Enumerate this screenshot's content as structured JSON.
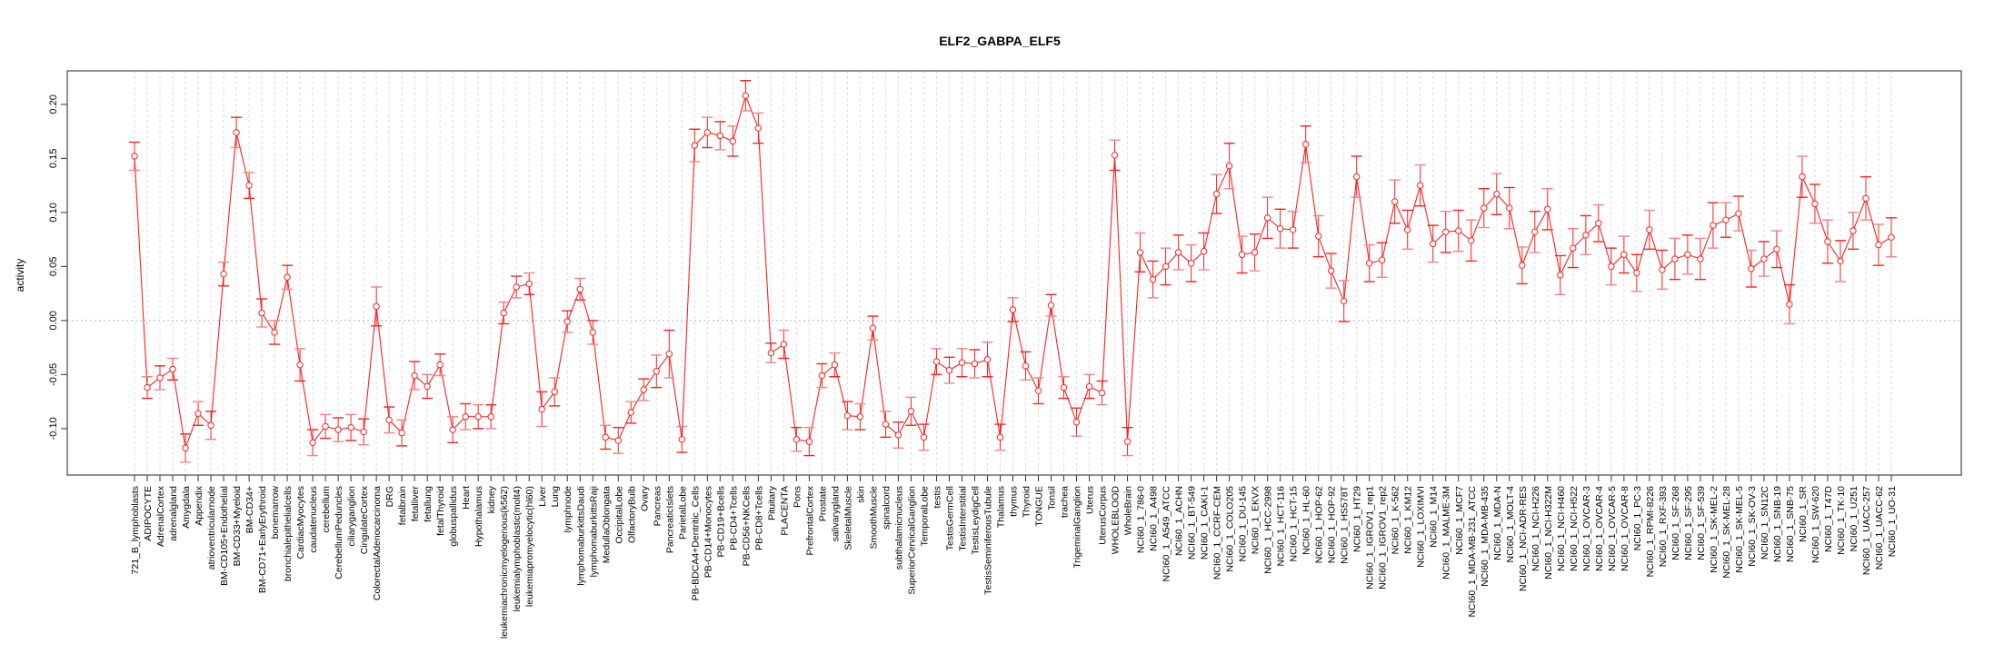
{
  "chart_data": {
    "type": "line",
    "title": "ELF2_GABPA_ELF5",
    "xlabel": "",
    "ylabel": "activity",
    "ylim": [
      -0.143,
      0.231
    ],
    "yticks": [
      -0.1,
      -0.05,
      0.0,
      0.05,
      0.1,
      0.15,
      0.2
    ],
    "ytick_labels": [
      "-0.10",
      "-0.05",
      "0.00",
      "0.05",
      "0.10",
      "0.15",
      "0.20"
    ],
    "reference_line": 0.0,
    "grid": "vertical dashed per category",
    "legend": "none",
    "color": "#ff2020",
    "categories": [
      "721_B_lymphoblasts",
      "ADIPOCYTE",
      "AdrenalCortex",
      "adrenalgland",
      "Amygdala",
      "Appendix",
      "atrioventricularnode",
      "BM-CD105+Endothelial",
      "BM-CD33+Myeloid",
      "BM-CD34+",
      "BM-CD71+EarlyErythroid",
      "bonemarrow",
      "bronchialepithelialcells",
      "CardiacMyocytes",
      "caudatenucleus",
      "cerebellum",
      "CerebellumPeduncles",
      "ciliaryganglion",
      "CingulateCortex",
      "ColorectalAdenocarcinoma",
      "DRG",
      "fetalbrain",
      "fetalliver",
      "fetallung",
      "fetalThyroid",
      "globuspallidus",
      "Heart",
      "Hypothalamus",
      "kidney",
      "leukemiachronicmyelogenous(k562)",
      "leukemialymphoblastic(molt4)",
      "leukemiapromyelocytic(hl60)",
      "Liver",
      "Lung",
      "lymphnode",
      "lymphomaburkittsDaudi",
      "lymphomaburkittsRaji",
      "MedullaOblongata",
      "OccipitalLobe",
      "OlfactoryBulb",
      "Ovary",
      "Pancreas",
      "PancreaticIslets",
      "ParietalLobe",
      "PB-BDCA4+Dentritic_Cells",
      "PB-CD14+Monocytes",
      "PB-CD19+Bcells",
      "PB-CD4+Tcells",
      "PB-CD56+NKCells",
      "PB-CD8+Tcells",
      "Pituitary",
      "PLACENTA",
      "Pons",
      "PrefrontalCortex",
      "Prostate",
      "salivarygland",
      "SkeletalMuscle",
      "skin",
      "SmoothMuscle",
      "spinalcord",
      "subthalamicnucleus",
      "SuperiorCervicalGanglion",
      "TemporalLobe",
      "testis",
      "TestisGermCell",
      "TestisInterstitial",
      "TestisLeydigCell",
      "TestisSeminiferousTubule",
      "Thalamus",
      "thymus",
      "Thyroid",
      "TONGUE",
      "Tonsil",
      "trachea",
      "TrigeminalGanglion",
      "Uterus",
      "UterusCorpus",
      "WHOLEBLOOD",
      "WholeBrain",
      "NCI60_1_786-0",
      "NCI60_1_A498",
      "NCI60_1_A549_ATCC",
      "NCI60_1_ACHN",
      "NCI60_1_BT-549",
      "NCI60_1_CAKI-1",
      "NCI60_1_CCRF-CEM",
      "NCI60_1_COLO205",
      "NCI60_1_DU-145",
      "NCI60_1_EKVX",
      "NCI60_1_HCC-2998",
      "NCI60_1_HCT-116",
      "NCI60_1_HCT-15",
      "NCI60_1_HL-60",
      "NCI60_1_HOP-62",
      "NCI60_1_HOP-92",
      "NCI60_1_HS578T",
      "NCI60_1_HT29",
      "NCI60_1_IGROV1_rep1",
      "NCI60_1_IGROV1_rep2",
      "NCI60_1_K-562",
      "NCI60_1_KM12",
      "NCI60_1_LOXIMVI",
      "NCI60_1_M14",
      "NCI60_1_MALME-3M",
      "NCI60_1_MCF7",
      "NCI60_1_MDA-MB-231_ATCC",
      "NCI60_1_MDA-MB-435",
      "NCI60_1_MDA-N",
      "NCI60_1_MOLT-4",
      "NCI60_1_NCI-ADR-RES",
      "NCI60_1_NCI-H226",
      "NCI60_1_NCI-H322M",
      "NCI60_1_NCI-H460",
      "NCI60_1_NCI-H522",
      "NCI60_1_OVCAR-3",
      "NCI60_1_OVCAR-4",
      "NCI60_1_OVCAR-5",
      "NCI60_1_OVCAR-8",
      "NCI60_1_PC-3",
      "NCI60_1_RPMI-8226",
      "NCI60_1_RXF-393",
      "NCI60_1_SF-268",
      "NCI60_1_SF-295",
      "NCI60_1_SF-539",
      "NCI60_1_SK-MEL-2",
      "NCI60_1_SK-MEL-28",
      "NCI60_1_SK-MEL-5",
      "NCI60_1_SK-OV-3",
      "NCI60_1_SN12C",
      "NCI60_1_SNB-19",
      "NCI60_1_SNB-75",
      "NCI60_1_SR",
      "NCI60_1_SW-620",
      "NCI60_1_T47D",
      "NCI60_1_TK-10",
      "NCI60_1_U251",
      "NCI60_1_UACC-257",
      "NCI60_1_UACC-62",
      "NCI60_1_UO-31"
    ],
    "values": [
      0.152,
      -0.062,
      -0.053,
      -0.045,
      -0.118,
      -0.086,
      -0.097,
      0.043,
      0.174,
      0.125,
      0.007,
      -0.011,
      0.04,
      -0.041,
      -0.113,
      -0.098,
      -0.101,
      -0.099,
      -0.103,
      0.013,
      -0.092,
      -0.104,
      -0.051,
      -0.061,
      -0.041,
      -0.101,
      -0.089,
      -0.089,
      -0.089,
      0.007,
      0.031,
      0.034,
      -0.082,
      -0.066,
      -0.001,
      0.029,
      -0.011,
      -0.108,
      -0.111,
      -0.085,
      -0.064,
      -0.047,
      -0.031,
      -0.11,
      0.162,
      0.174,
      0.171,
      0.166,
      0.208,
      0.178,
      -0.03,
      -0.022,
      -0.11,
      -0.112,
      -0.051,
      -0.041,
      -0.088,
      -0.089,
      -0.007,
      -0.096,
      -0.106,
      -0.084,
      -0.108,
      -0.038,
      -0.046,
      -0.039,
      -0.04,
      -0.036,
      -0.108,
      0.01,
      -0.042,
      -0.065,
      0.014,
      -0.062,
      -0.094,
      -0.061,
      -0.067,
      0.153,
      -0.112,
      0.063,
      0.038,
      0.05,
      0.063,
      0.053,
      0.064,
      0.117,
      0.143,
      0.061,
      0.063,
      0.095,
      0.085,
      0.084,
      0.163,
      0.078,
      0.046,
      0.018,
      0.133,
      0.053,
      0.056,
      0.11,
      0.084,
      0.125,
      0.071,
      0.082,
      0.083,
      0.074,
      0.104,
      0.117,
      0.104,
      0.051,
      0.082,
      0.103,
      0.042,
      0.067,
      0.079,
      0.09,
      0.05,
      0.061,
      0.044,
      0.084,
      0.047,
      0.057,
      0.061,
      0.057,
      0.088,
      0.093,
      0.099,
      0.048,
      0.057,
      0.066,
      0.015,
      0.133,
      0.108,
      0.073,
      0.055,
      0.083,
      0.113,
      0.07,
      0.077
    ],
    "errors": [
      0.013,
      0.01,
      0.011,
      0.01,
      0.013,
      0.011,
      0.013,
      0.011,
      0.014,
      0.012,
      0.013,
      0.011,
      0.011,
      0.015,
      0.012,
      0.011,
      0.011,
      0.012,
      0.012,
      0.018,
      0.012,
      0.012,
      0.013,
      0.011,
      0.01,
      0.012,
      0.012,
      0.011,
      0.011,
      0.01,
      0.01,
      0.01,
      0.016,
      0.013,
      0.01,
      0.01,
      0.011,
      0.011,
      0.012,
      0.01,
      0.01,
      0.015,
      0.022,
      0.012,
      0.015,
      0.014,
      0.013,
      0.014,
      0.014,
      0.014,
      0.009,
      0.013,
      0.011,
      0.013,
      0.011,
      0.011,
      0.013,
      0.012,
      0.011,
      0.012,
      0.012,
      0.013,
      0.012,
      0.012,
      0.012,
      0.013,
      0.013,
      0.016,
      0.012,
      0.011,
      0.013,
      0.012,
      0.01,
      0.01,
      0.013,
      0.011,
      0.011,
      0.014,
      0.013,
      0.018,
      0.017,
      0.017,
      0.016,
      0.017,
      0.017,
      0.018,
      0.021,
      0.017,
      0.017,
      0.019,
      0.018,
      0.017,
      0.017,
      0.019,
      0.016,
      0.019,
      0.019,
      0.017,
      0.016,
      0.02,
      0.018,
      0.019,
      0.017,
      0.019,
      0.019,
      0.019,
      0.018,
      0.019,
      0.019,
      0.017,
      0.019,
      0.019,
      0.018,
      0.018,
      0.018,
      0.017,
      0.017,
      0.017,
      0.017,
      0.018,
      0.018,
      0.019,
      0.018,
      0.019,
      0.021,
      0.016,
      0.016,
      0.017,
      0.016,
      0.017,
      0.018,
      0.019,
      0.018,
      0.02,
      0.019,
      0.017,
      0.02,
      0.019,
      0.018
    ]
  }
}
